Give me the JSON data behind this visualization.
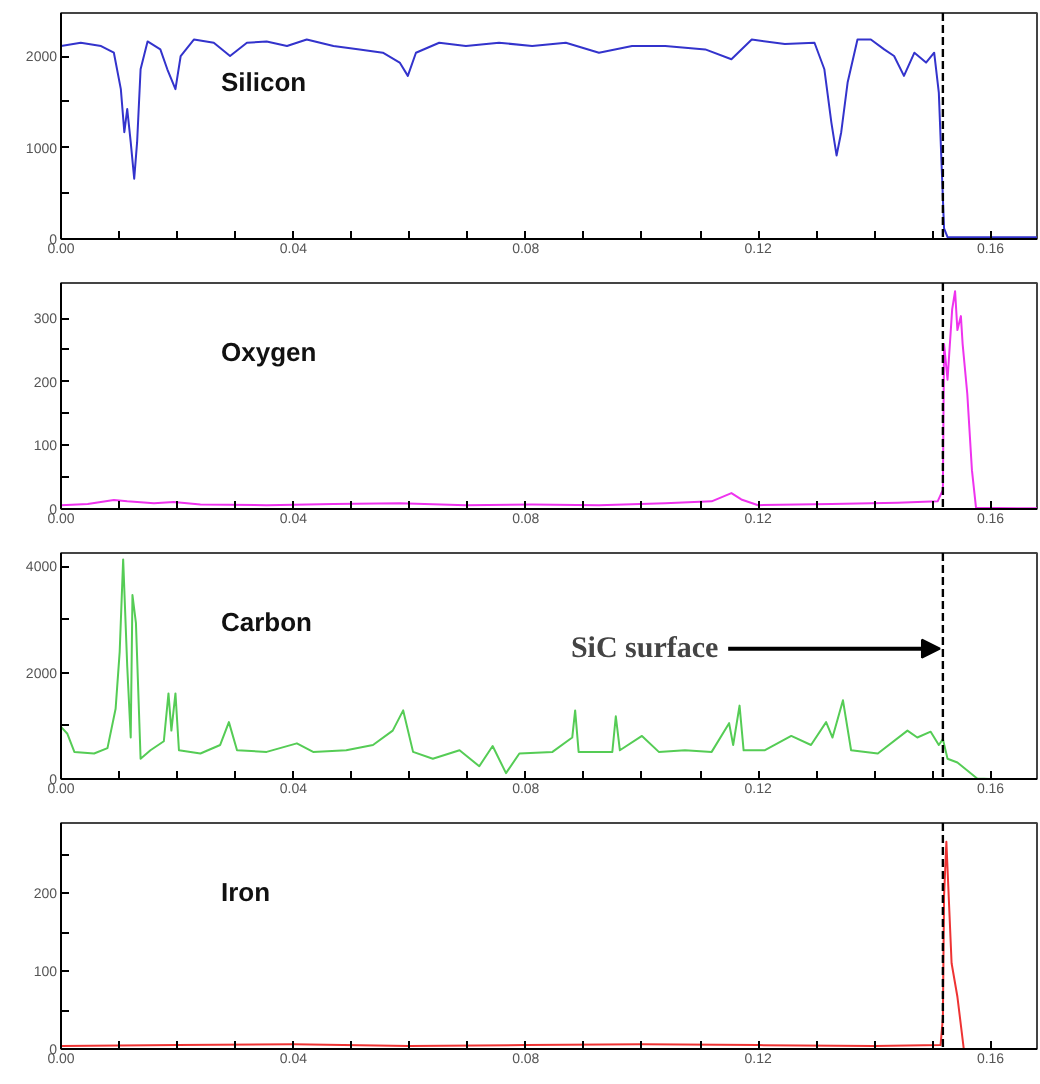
{
  "chart_data": [
    {
      "type": "line",
      "xlim": [
        0,
        0.168
      ],
      "xticks": [
        {
          "value": 0,
          "label": "0.00"
        },
        {
          "value": 0.01,
          "label": null
        },
        {
          "value": 0.02,
          "label": null
        },
        {
          "value": 0.03,
          "label": null
        },
        0.04,
        {
          "value": 0.05,
          "label": null
        },
        {
          "value": 0.06,
          "label": null
        },
        {
          "value": 0.07,
          "label": null
        },
        0.08,
        {
          "value": 0.09,
          "label": null
        },
        {
          "value": 0.1,
          "label": null
        },
        {
          "value": 0.11,
          "label": null
        },
        0.12,
        {
          "value": 0.13,
          "label": null
        },
        {
          "value": 0.14,
          "label": null
        },
        {
          "value": 0.15,
          "label": null
        },
        0.16
      ],
      "ylim": [
        0,
        2470
      ],
      "yticks": [
        0,
        {
          "value": 500,
          "label": null
        },
        1000,
        {
          "value": 1500,
          "label": null
        },
        2000
      ],
      "ref_lines": [
        {
          "axis": "x",
          "value": 0.1518,
          "color": "#000000",
          "line_style": "dashed"
        }
      ],
      "series": [
        {
          "name": "Silicon",
          "color": "#3333cc",
          "x": [
            0,
            0.0034,
            0.0069,
            0.0091,
            0.0103,
            0.0109,
            0.0114,
            0.012,
            0.0126,
            0.0131,
            0.0137,
            0.0149,
            0.0171,
            0.0183,
            0.0197,
            0.0206,
            0.0229,
            0.0263,
            0.0291,
            0.032,
            0.0354,
            0.0389,
            0.0423,
            0.0469,
            0.0514,
            0.0554,
            0.0583,
            0.0597,
            0.0611,
            0.0651,
            0.0697,
            0.0754,
            0.0811,
            0.0869,
            0.0926,
            0.0983,
            0.104,
            0.1109,
            0.1154,
            0.1189,
            0.1246,
            0.1297,
            0.1314,
            0.1326,
            0.1335,
            0.1343,
            0.1354,
            0.1371,
            0.1394,
            0.1417,
            0.1434,
            0.1451,
            0.1469,
            0.1489,
            0.1503,
            0.1511,
            0.152,
            0.1526,
            0.1554,
            0.168
          ],
          "values": [
            2109,
            2145,
            2109,
            2036,
            1638,
            1167,
            1420,
            1058,
            659,
            1058,
            1855,
            2159,
            2072,
            1855,
            1638,
            2000,
            2181,
            2145,
            2000,
            2145,
            2159,
            2109,
            2181,
            2109,
            2072,
            2036,
            1928,
            1783,
            2036,
            2145,
            2109,
            2145,
            2109,
            2145,
            2036,
            2109,
            2109,
            2072,
            1964,
            2181,
            2130,
            2145,
            1855,
            1275,
            913,
            1167,
            1710,
            2181,
            2181,
            2072,
            2000,
            1783,
            2036,
            1928,
            2036,
            1601,
            116,
            20,
            20,
            20
          ]
        }
      ]
    },
    {
      "type": "line",
      "xlim": [
        0,
        0.168
      ],
      "xticks": [
        {
          "value": 0,
          "label": "0.00"
        },
        {
          "value": 0.01,
          "label": null
        },
        {
          "value": 0.02,
          "label": null
        },
        {
          "value": 0.03,
          "label": null
        },
        0.04,
        {
          "value": 0.05,
          "label": null
        },
        {
          "value": 0.06,
          "label": null
        },
        {
          "value": 0.07,
          "label": null
        },
        0.08,
        {
          "value": 0.09,
          "label": null
        },
        {
          "value": 0.1,
          "label": null
        },
        {
          "value": 0.11,
          "label": null
        },
        0.12,
        {
          "value": 0.13,
          "label": null
        },
        {
          "value": 0.14,
          "label": null
        },
        {
          "value": 0.15,
          "label": null
        },
        0.16
      ],
      "ylim": [
        0,
        355
      ],
      "yticks": [
        0,
        {
          "value": 50,
          "label": null
        },
        100,
        {
          "value": 150,
          "label": null
        },
        200,
        {
          "value": 250,
          "label": null
        },
        300
      ],
      "ref_lines": [
        {
          "axis": "x",
          "value": 0.1518,
          "color": "#000000",
          "line_style": "dashed"
        }
      ],
      "series": [
        {
          "name": "Oxygen",
          "color": "#ee33ee",
          "x": [
            0,
            0.0046,
            0.0091,
            0.0114,
            0.016,
            0.0194,
            0.024,
            0.0354,
            0.0469,
            0.0583,
            0.0697,
            0.0811,
            0.0926,
            0.104,
            0.112,
            0.1154,
            0.1171,
            0.12,
            0.1326,
            0.144,
            0.1509,
            0.1518,
            0.152,
            0.1526,
            0.1534,
            0.1539,
            0.1543,
            0.1549,
            0.1552,
            0.156,
            0.1568,
            0.1575,
            0.168
          ],
          "values": [
            6,
            8,
            14,
            12,
            9,
            11,
            7,
            6,
            8,
            9,
            6,
            7,
            6,
            9,
            12,
            25,
            15,
            6,
            8,
            10,
            12,
            30,
            259,
            203,
            314,
            342,
            281,
            303,
            259,
            181,
            61,
            2,
            1
          ]
        }
      ]
    },
    {
      "type": "line",
      "xlim": [
        0,
        0.168
      ],
      "xticks": [
        {
          "value": 0,
          "label": "0.00"
        },
        {
          "value": 0.01,
          "label": null
        },
        {
          "value": 0.02,
          "label": null
        },
        {
          "value": 0.03,
          "label": null
        },
        0.04,
        {
          "value": 0.05,
          "label": null
        },
        {
          "value": 0.06,
          "label": null
        },
        {
          "value": 0.07,
          "label": null
        },
        0.08,
        {
          "value": 0.09,
          "label": null
        },
        {
          "value": 0.1,
          "label": null
        },
        {
          "value": 0.11,
          "label": null
        },
        0.12,
        {
          "value": 0.13,
          "label": null
        },
        {
          "value": 0.14,
          "label": null
        },
        {
          "value": 0.15,
          "label": null
        },
        0.16
      ],
      "ylim": [
        0,
        4250
      ],
      "yticks": [
        0,
        {
          "value": 1000,
          "label": null
        },
        2000,
        {
          "value": 3000,
          "label": null
        },
        4000
      ],
      "ref_lines": [
        {
          "axis": "x",
          "value": 0.1518,
          "color": "#000000",
          "line_style": "dashed"
        }
      ],
      "annotations": [
        {
          "text": "SiC surface",
          "x": 0.1518,
          "y": 2450
        }
      ],
      "series": [
        {
          "name": "Carbon",
          "color": "#55cc55",
          "x": [
            0,
            0.0011,
            0.0023,
            0.0057,
            0.008,
            0.0094,
            0.0101,
            0.0107,
            0.0114,
            0.012,
            0.0123,
            0.0129,
            0.0137,
            0.0154,
            0.0177,
            0.0185,
            0.019,
            0.0197,
            0.0203,
            0.024,
            0.0274,
            0.0289,
            0.0303,
            0.0354,
            0.0406,
            0.0434,
            0.0491,
            0.0537,
            0.0571,
            0.0589,
            0.0606,
            0.064,
            0.0686,
            0.072,
            0.0743,
            0.0766,
            0.0789,
            0.0846,
            0.088,
            0.0885,
            0.0891,
            0.0949,
            0.0955,
            0.0962,
            0.1,
            0.1029,
            0.1074,
            0.112,
            0.115,
            0.1157,
            0.1168,
            0.1175,
            0.1211,
            0.1257,
            0.1291,
            0.1317,
            0.1328,
            0.1346,
            0.136,
            0.1406,
            0.1457,
            0.1474,
            0.1497,
            0.1511,
            0.1518,
            0.1526,
            0.1543,
            0.1577,
            0.16,
            0.168
          ],
          "values": [
            980,
            850,
            510,
            480,
            580,
            1320,
            2390,
            4130,
            2120,
            780,
            3460,
            2930,
            380,
            540,
            710,
            1610,
            910,
            1610,
            540,
            480,
            640,
            1070,
            540,
            510,
            670,
            510,
            540,
            640,
            910,
            1290,
            510,
            380,
            540,
            240,
            620,
            110,
            480,
            510,
            780,
            1290,
            510,
            510,
            1180,
            540,
            810,
            510,
            540,
            510,
            1050,
            640,
            1380,
            540,
            540,
            810,
            640,
            1070,
            780,
            1480,
            540,
            480,
            910,
            780,
            890,
            640,
            750,
            380,
            310,
            10,
            0,
            0
          ]
        }
      ]
    },
    {
      "type": "line",
      "xlim": [
        0,
        0.168
      ],
      "xticks": [
        {
          "value": 0,
          "label": "0.00"
        },
        {
          "value": 0.01,
          "label": null
        },
        {
          "value": 0.02,
          "label": null
        },
        {
          "value": 0.03,
          "label": null
        },
        0.04,
        {
          "value": 0.05,
          "label": null
        },
        {
          "value": 0.06,
          "label": null
        },
        {
          "value": 0.07,
          "label": null
        },
        0.08,
        {
          "value": 0.09,
          "label": null
        },
        {
          "value": 0.1,
          "label": null
        },
        {
          "value": 0.11,
          "label": null
        },
        0.12,
        {
          "value": 0.13,
          "label": null
        },
        {
          "value": 0.14,
          "label": null
        },
        {
          "value": 0.15,
          "label": null
        },
        0.16
      ],
      "ylim": [
        0,
        290
      ],
      "yticks": [
        0,
        {
          "value": 50,
          "label": null
        },
        100,
        {
          "value": 150,
          "label": null
        },
        200,
        {
          "value": 250,
          "label": null
        }
      ],
      "ref_lines": [
        {
          "axis": "x",
          "value": 0.1518,
          "color": "#000000",
          "line_style": "dashed"
        }
      ],
      "series": [
        {
          "name": "Iron",
          "color": "#ee3333",
          "x": [
            0,
            0.02,
            0.04,
            0.06,
            0.08,
            0.1,
            0.12,
            0.14,
            0.1514,
            0.1518,
            0.152,
            0.1524,
            0.1533,
            0.1543,
            0.1554,
            0.168
          ],
          "values": [
            4,
            5,
            6,
            4,
            5,
            6,
            5,
            4,
            5,
            40,
            196,
            266,
            110,
            67,
            0,
            0
          ]
        }
      ]
    }
  ]
}
